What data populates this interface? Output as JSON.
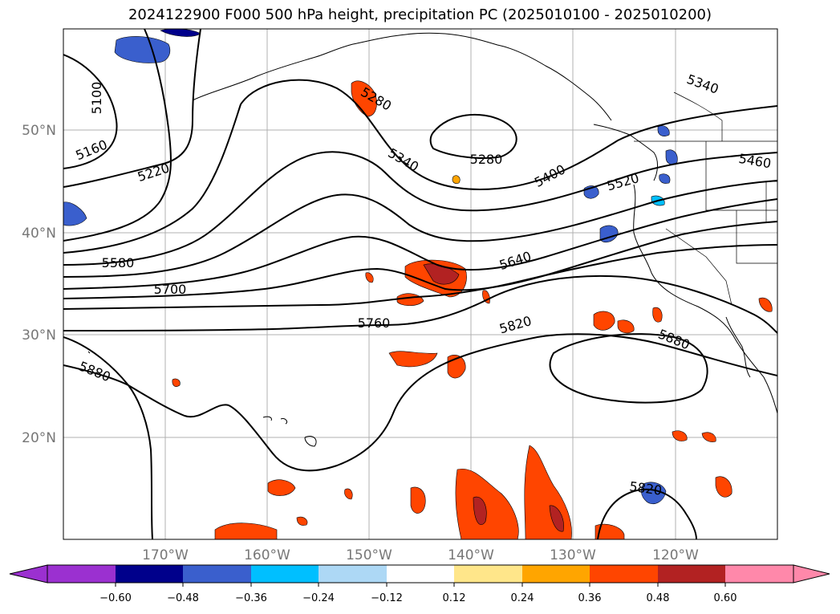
{
  "title": "2024122900 F000 500 hPa height, precipitation PC (2025010100 - 2025010200)",
  "map": {
    "lon_labels": [
      "170°W",
      "160°W",
      "150°W",
      "140°W",
      "130°W",
      "120°W"
    ],
    "lat_labels": [
      "50°N",
      "40°N",
      "30°N",
      "20°N"
    ],
    "contour_labels": [
      "5100",
      "5160",
      "5220",
      "5280",
      "5340",
      "5280",
      "5400",
      "5520",
      "5460",
      "5340",
      "5580",
      "5640",
      "5700",
      "5760",
      "5820",
      "5880",
      "5880",
      "5820"
    ]
  },
  "colorbar": {
    "ticks": [
      "−0.60",
      "−0.48",
      "−0.36",
      "−0.24",
      "−0.12",
      "0.12",
      "0.24",
      "0.36",
      "0.48",
      "0.60"
    ],
    "colors": [
      "#9b30d0",
      "#00008b",
      "#3a5fcd",
      "#00bfff",
      "#add8f5",
      "#ffffff",
      "#ffe68a",
      "#ffa500",
      "#ff4500",
      "#b22222",
      "#ff88aa"
    ]
  }
}
